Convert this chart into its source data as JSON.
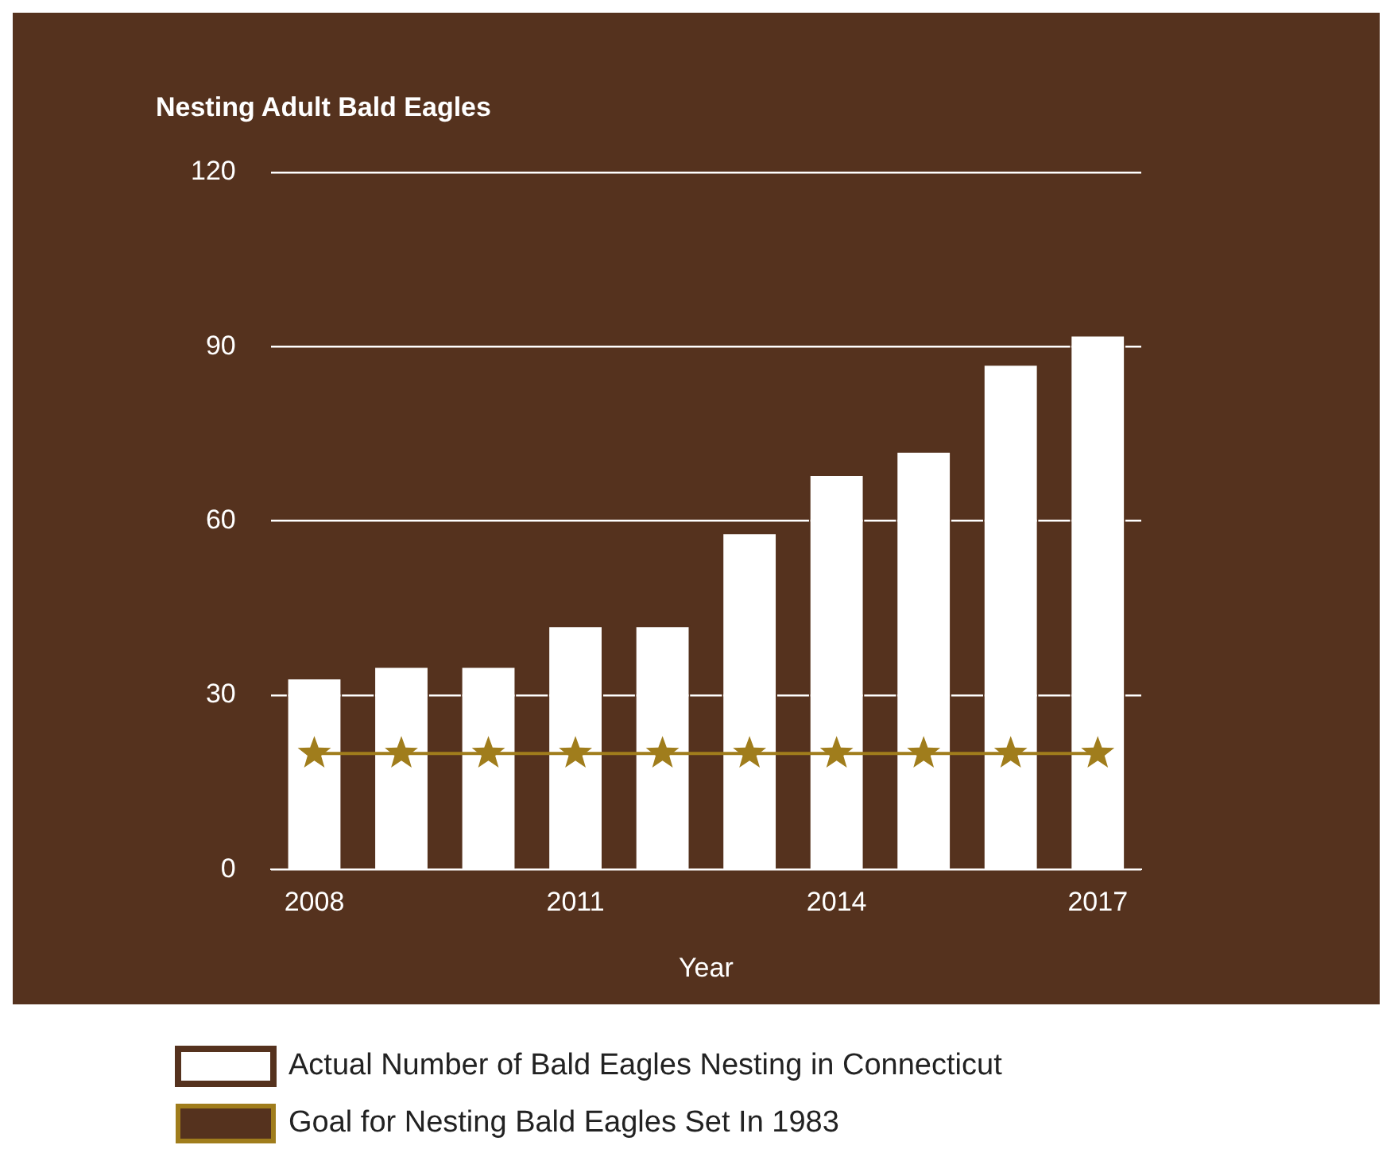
{
  "chart_data": {
    "type": "bar",
    "title": "Nesting Adult Bald Eagles",
    "xlabel": "Year",
    "categories": [
      "2008",
      null,
      null,
      "2011",
      null,
      null,
      "2014",
      null,
      null,
      "2017"
    ],
    "series": [
      {
        "name": "Actual Number of Bald Eagles Nesting in Connecticut",
        "color": "#ffffff",
        "values": [
          33,
          35,
          35,
          42,
          42,
          58,
          68,
          72,
          87,
          92
        ]
      },
      {
        "name": "Goal for Nesting Bald Eagles Set In 1983",
        "type": "line",
        "color": "#a07d1c",
        "values": [
          20,
          20,
          20,
          20,
          20,
          20,
          20,
          20,
          20,
          20
        ],
        "marker": "star",
        "line_style": "solid"
      }
    ],
    "ylim": [
      0,
      120
    ],
    "yticks": [
      0,
      30,
      60,
      90,
      120
    ],
    "grid": "y",
    "legend": "bottom"
  }
}
